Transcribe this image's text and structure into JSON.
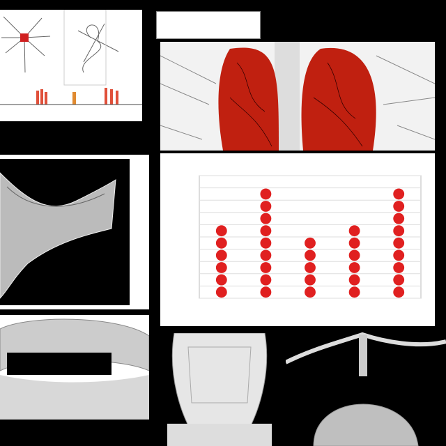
{
  "collage": {
    "title_box": {
      "line1": "",
      "line2": ""
    },
    "chart": {
      "title": "",
      "xlabel": "",
      "ylabel_lines": [
        "",
        "",
        "",
        "",
        ""
      ]
    },
    "caption_left": ""
  },
  "colors": {
    "background": "#000000",
    "dot_red": "#e02020",
    "lung_red": "#c02010",
    "panel_white": "#ffffff",
    "bar_red": "#e0503a"
  },
  "chart_data": {
    "type": "scatter",
    "categories": [
      "",
      "",
      "",
      "",
      ""
    ],
    "values": [
      6,
      9,
      5,
      6,
      9
    ],
    "ylim": [
      0,
      10
    ],
    "yticks": [
      "",
      "",
      "",
      "",
      "",
      "",
      "",
      "",
      "",
      "",
      ""
    ],
    "grid": true,
    "marker": "stacked-dots"
  }
}
